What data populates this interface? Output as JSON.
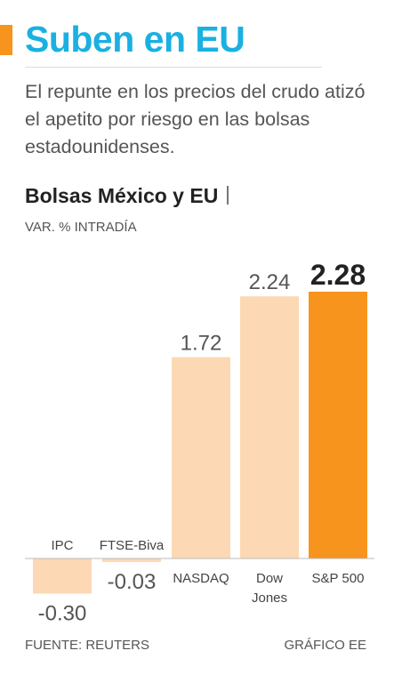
{
  "header": {
    "title": "Suben en EU",
    "subtitle": "El repunte en los precios del crudo atizó el apetito por riesgo en las bolsas estadounidenses."
  },
  "colors": {
    "accent": "#f7941d",
    "title": "#1ab0e2",
    "bar_default": "#fcd9b4",
    "bar_highlight": "#f7941d",
    "axis": "#bbbbbb"
  },
  "chart_data": {
    "type": "bar",
    "title": "Bolsas México y EU",
    "units": "VAR. % INTRADÍA",
    "categories": [
      [
        "IPC"
      ],
      [
        "FTSE-Biva"
      ],
      [
        "NASDAQ"
      ],
      [
        "Dow",
        "Jones"
      ],
      [
        "S&P 500"
      ]
    ],
    "values": [
      -0.3,
      -0.03,
      1.72,
      2.24,
      2.28
    ],
    "value_labels": [
      "-0.30",
      "-0.03",
      "1.72",
      "2.24",
      "2.28"
    ],
    "highlight": "S&P 500",
    "ylim": [
      -0.35,
      2.35
    ],
    "grid": false,
    "legend": "none"
  },
  "footer": {
    "source": "FUENTE: REUTERS",
    "credit": "GRÁFICO EE"
  }
}
